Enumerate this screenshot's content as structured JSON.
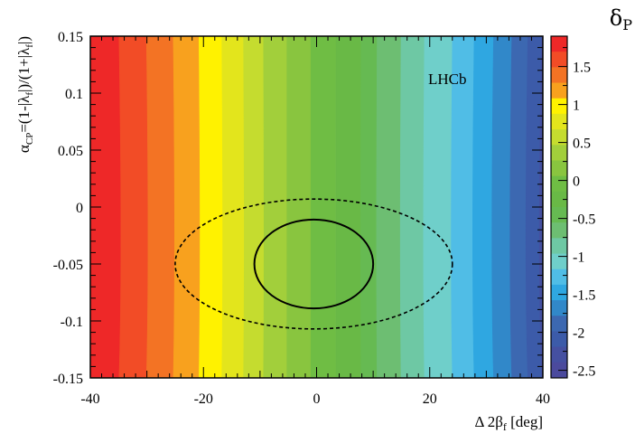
{
  "chart_data": {
    "type": "heatmap",
    "title": "",
    "xlabel": "Δ2β_f [deg]",
    "xlabel_parts": {
      "prefix": "Δ 2β",
      "sub": "f",
      "suffix": " [deg]"
    },
    "ylabel": "α_CP=(1-|λ_f|)/(1+|λ_f|)",
    "ylabel_parts": {
      "a": "α",
      "sub_cp": "CP",
      "mid1": "=(1-|λ",
      "sub_f1": "f",
      "mid2": "|)/(1+|λ",
      "sub_f2": "f",
      "end": "|)"
    },
    "xlim": [
      -40,
      40
    ],
    "ylim": [
      -0.15,
      0.15
    ],
    "x_ticks": [
      -40,
      -20,
      0,
      20,
      40
    ],
    "x_tick_labels": [
      "-40",
      "-20",
      "0",
      "20",
      "40"
    ],
    "y_ticks": [
      0.15,
      0.1,
      0.05,
      0,
      -0.05,
      -0.1,
      -0.15
    ],
    "y_tick_labels": [
      "0.15",
      "0.1",
      "0.05",
      "0",
      "-0.05",
      "-0.1",
      "-0.15"
    ],
    "experiment_label": "LHCb",
    "palette": {
      "title": "δ",
      "title_sub": "P",
      "zlim": [
        -2.6,
        1.9
      ],
      "ticks": [
        1.5,
        1,
        0.5,
        0,
        -0.5,
        -1,
        -1.5,
        -2,
        -2.5
      ],
      "tick_labels": [
        "1.5",
        "1",
        "0.5",
        "0",
        "-0.5",
        "-1",
        "-1.5",
        "-2",
        "-2.5"
      ]
    },
    "contour_levels": [
      {
        "upper": 1.9,
        "color": "#ee2828"
      },
      {
        "upper": 1.6,
        "color": "#f24c26"
      },
      {
        "upper": 1.4,
        "color": "#f37324"
      },
      {
        "upper": 1.2,
        "color": "#f8a11e"
      },
      {
        "upper": 1.0,
        "color": "#fff200"
      },
      {
        "upper": 0.8,
        "color": "#e3e51c"
      },
      {
        "upper": 0.6,
        "color": "#c5dc2f"
      },
      {
        "upper": 0.4,
        "color": "#a2cf3b"
      },
      {
        "upper": 0.2,
        "color": "#89c53f"
      },
      {
        "upper": 0.0,
        "color": "#6fbd44"
      },
      {
        "upper": -0.2,
        "color": "#69b946"
      },
      {
        "upper": -0.4,
        "color": "#66ba52"
      },
      {
        "upper": -0.6,
        "color": "#6dbe72"
      },
      {
        "upper": -0.8,
        "color": "#6ec8a4"
      },
      {
        "upper": -1.0,
        "color": "#6fcfca"
      },
      {
        "upper": -1.2,
        "color": "#50bde6"
      },
      {
        "upper": -1.4,
        "color": "#2fa7e1"
      },
      {
        "upper": -1.6,
        "color": "#3188c9"
      },
      {
        "upper": -1.8,
        "color": "#3c68b1"
      },
      {
        "upper": -2.0,
        "color": "#3c5ba9"
      },
      {
        "upper": -2.2,
        "color": "#4550a1"
      },
      {
        "upper": -2.4,
        "color": "#4b4a9d"
      }
    ],
    "stripe_boundaries_x": [
      -34.6,
      -29.8,
      -25.1,
      -20.6,
      -16.6,
      -12.8,
      -9.3,
      -5.2,
      -1.0,
      3.4,
      7.8,
      10.6,
      14.8,
      18.9,
      23.8,
      27.6,
      31.0,
      34.2,
      37.0,
      39.4
    ],
    "ellipses": [
      {
        "name": "1-sigma contour",
        "style": "solid",
        "center": [
          -0.5,
          -0.05
        ],
        "half_width": 10.5,
        "half_height": 0.039
      },
      {
        "name": "2-sigma contour",
        "style": "dashed",
        "center": [
          -0.5,
          -0.05
        ],
        "half_width": 24.5,
        "half_height": 0.057
      }
    ]
  }
}
